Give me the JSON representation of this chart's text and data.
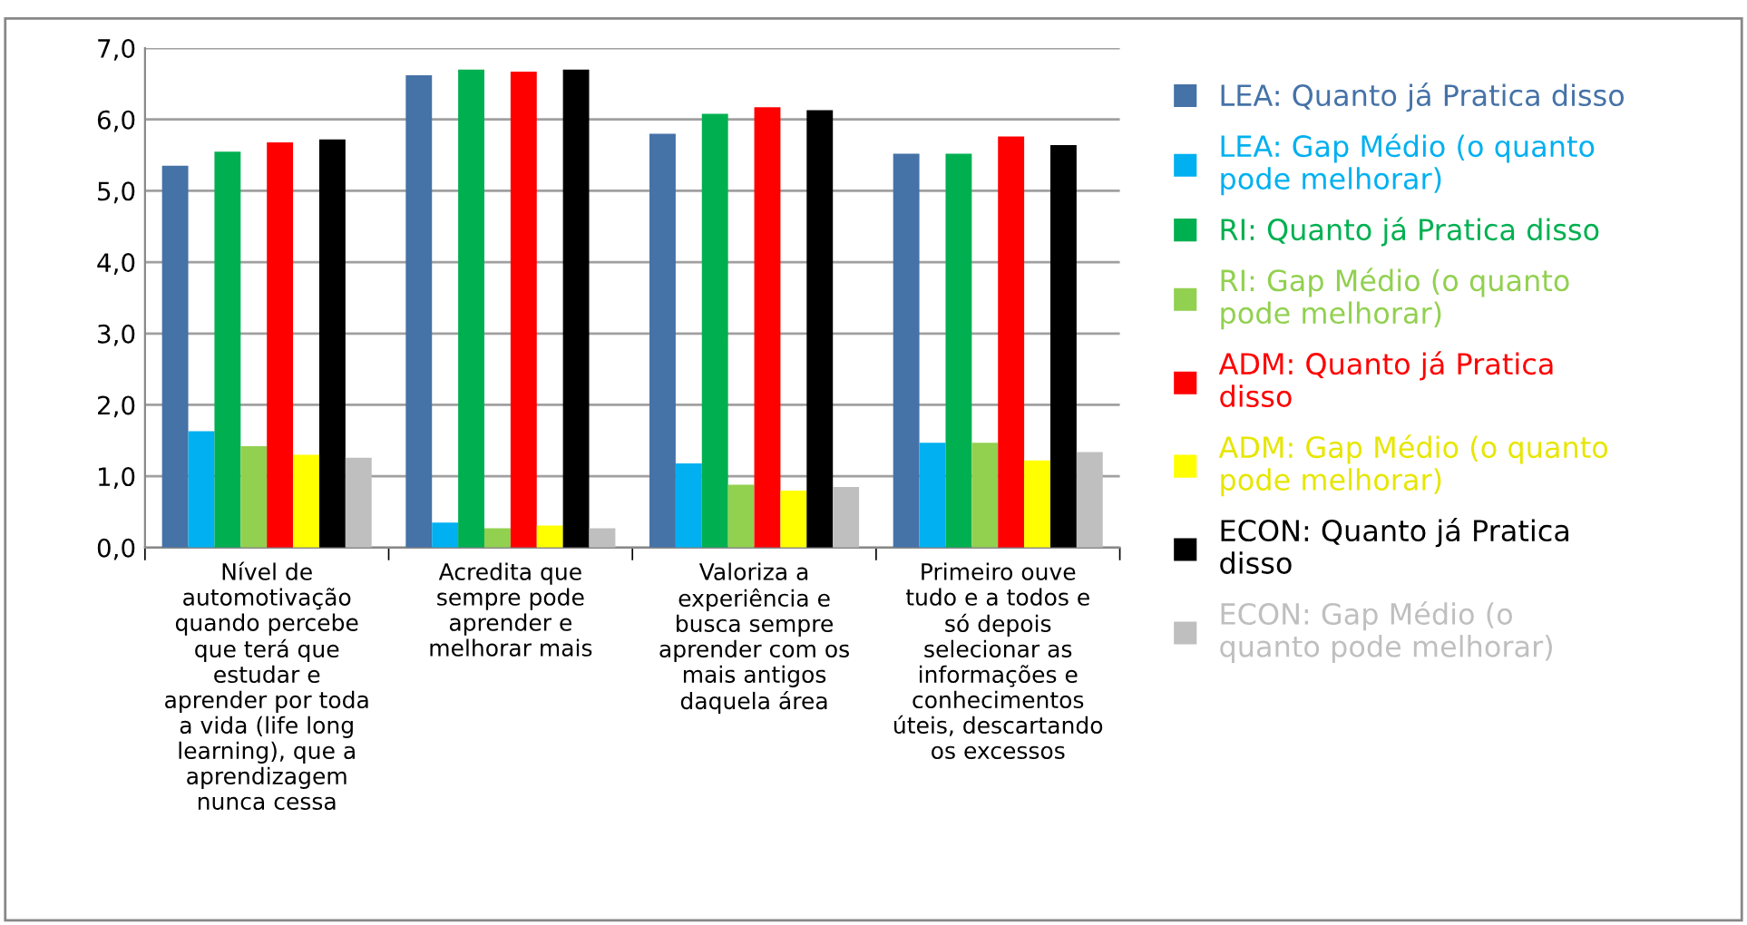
{
  "chart_data": {
    "type": "bar",
    "categories": [
      "Nível de\nautomotivação\nquando percebe\nque terá que\nestudar e\naprender por toda\na vida (life long\nlearning), que a\naprendizagem\nnunca cessa",
      "Acredita que\nsempre pode\naprender e\nmelhorar mais",
      "Valoriza a\nexperiência e\nbusca sempre\naprender com os\nmais antigos\ndaquela área",
      "Primeiro ouve\ntudo e a todos e\nsó depois\nselecionar as\ninformações e\nconhecimentos\núteis, descartando\nos excessos"
    ],
    "series": [
      {
        "name": "LEA: Quanto já Pratica disso",
        "color": "#4572a7",
        "values": [
          5.35,
          6.62,
          5.8,
          5.52
        ]
      },
      {
        "name": "LEA: Gap Médio (o quanto\npode melhorar)",
        "color": "#00b0f0",
        "values": [
          1.63,
          0.35,
          1.18,
          1.47
        ]
      },
      {
        "name": "RI: Quanto já Pratica disso",
        "color": "#00b050",
        "values": [
          5.55,
          6.7,
          6.08,
          5.52
        ]
      },
      {
        "name": "RI: Gap Médio (o quanto\npode melhorar)",
        "color": "#92d050",
        "values": [
          1.42,
          0.27,
          0.88,
          1.47
        ]
      },
      {
        "name": "ADM: Quanto já Pratica\ndisso",
        "color": "#ff0000",
        "values": [
          5.68,
          6.67,
          6.17,
          5.76
        ]
      },
      {
        "name": "ADM: Gap Médio (o quanto\npode melhorar)",
        "color": "#ffff00",
        "values": [
          1.3,
          0.31,
          0.8,
          1.22
        ]
      },
      {
        "name": "ECON: Quanto já Pratica\ndisso",
        "color": "#000000",
        "values": [
          5.72,
          6.7,
          6.13,
          5.64
        ]
      },
      {
        "name": "ECON: Gap Médio (o\nquanto pode melhorar)",
        "color": "#bfbfbf",
        "values": [
          1.26,
          0.27,
          0.85,
          1.34
        ]
      }
    ],
    "ylim": [
      0,
      7
    ],
    "yticks": [
      {
        "value": 0,
        "label": "0,0"
      },
      {
        "value": 1,
        "label": "1,0"
      },
      {
        "value": 2,
        "label": "2,0"
      },
      {
        "value": 3,
        "label": "3,0"
      },
      {
        "value": 4,
        "label": "4,0"
      },
      {
        "value": 5,
        "label": "5,0"
      },
      {
        "value": 6,
        "label": "6,0"
      },
      {
        "value": 7,
        "label": "7,0"
      }
    ],
    "grid": "y",
    "legend": "right"
  }
}
